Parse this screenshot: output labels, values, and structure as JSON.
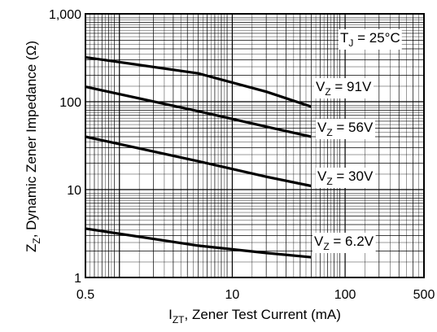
{
  "figure_id": "17925",
  "chart_data": {
    "type": "line",
    "xscale": "log",
    "yscale": "log",
    "xlim": [
      0.5,
      500
    ],
    "ylim": [
      1,
      1000
    ],
    "grid": true,
    "x_ticks": [
      "0.5",
      "10",
      "100",
      "500"
    ],
    "y_ticks": [
      "1",
      "10",
      "100",
      "1,000"
    ],
    "xlabel": {
      "main": "I",
      "sub": "ZT",
      "rest": ", Zener Test Current (mA)"
    },
    "ylabel": {
      "main": "Z",
      "sub": "Z",
      "rest": ", Dynamic Zener Impedance (Ω)"
    },
    "condition": {
      "main": "T",
      "sub": "J",
      "rest": " = 25°C"
    },
    "series": [
      {
        "name": "91V",
        "label": {
          "main": "V",
          "sub": "Z",
          "rest": " = 91V"
        },
        "x": [
          0.5,
          5,
          20,
          50
        ],
        "y": [
          320,
          210,
          130,
          88
        ]
      },
      {
        "name": "56V",
        "label": {
          "main": "V",
          "sub": "Z",
          "rest": " = 56V"
        },
        "x": [
          0.5,
          5,
          20,
          50
        ],
        "y": [
          148,
          78,
          52,
          40
        ]
      },
      {
        "name": "30V",
        "label": {
          "main": "V",
          "sub": "Z",
          "rest": " = 30V"
        },
        "x": [
          0.5,
          5,
          20,
          50
        ],
        "y": [
          40,
          21,
          14,
          11
        ]
      },
      {
        "name": "6.2V",
        "label": {
          "main": "V",
          "sub": "Z",
          "rest": " = 6.2V"
        },
        "x": [
          0.5,
          5,
          20,
          50
        ],
        "y": [
          3.6,
          2.3,
          1.9,
          1.7
        ]
      }
    ],
    "line_color": "#000000",
    "grid_color": "#000000"
  }
}
